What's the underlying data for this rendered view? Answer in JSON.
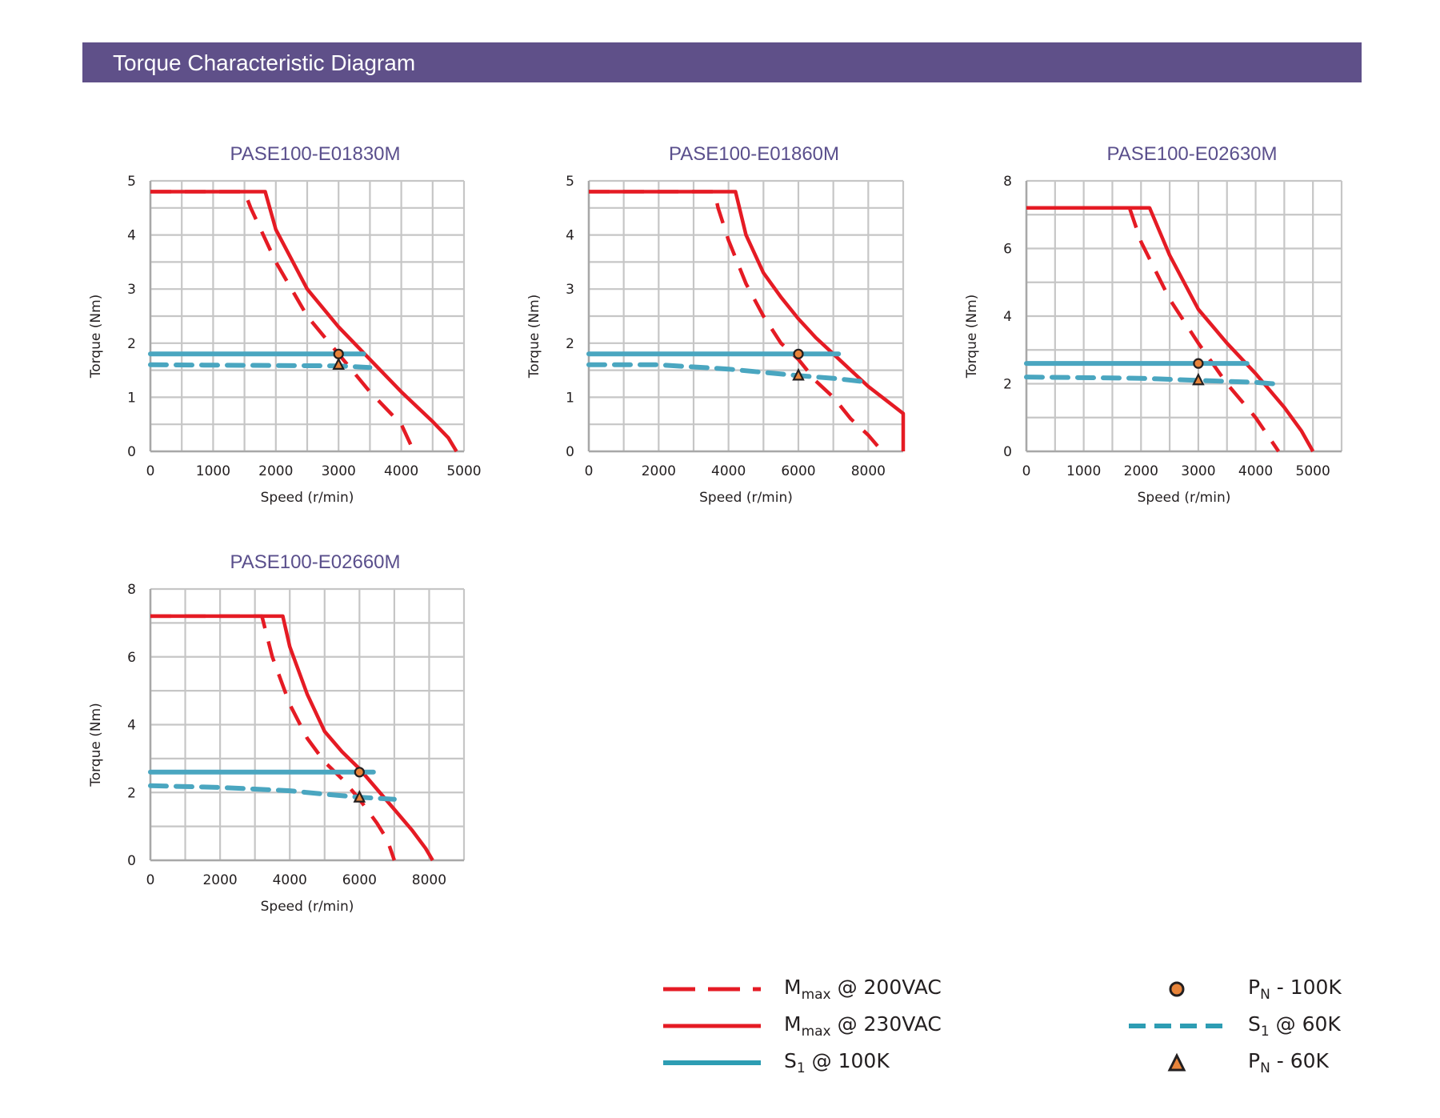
{
  "header": {
    "title": "Torque Characteristic Diagram"
  },
  "colors": {
    "header_bg": "#5f5089",
    "chart_title": "#5a4f8c",
    "mmax": "#e51b24",
    "s1": "#4aa6c0",
    "marker_fill": "#e8843a",
    "marker_stroke": "#231f20",
    "grid": "#c6c6c6"
  },
  "legend": {
    "items": [
      {
        "key": "mmax_200",
        "main": "M",
        "sub": "max",
        "rest": " @ 200VAC"
      },
      {
        "key": "mmax_230",
        "main": "M",
        "sub": "max",
        "rest": " @ 230VAC"
      },
      {
        "key": "s1_100k",
        "main": "S",
        "sub": "1",
        "rest": " @ 100K"
      },
      {
        "key": "pn_100k",
        "main": "P",
        "sub": "N",
        "rest": " - 100K"
      },
      {
        "key": "s1_60k",
        "main": "S",
        "sub": "1",
        "rest": " @ 60K"
      },
      {
        "key": "pn_60k",
        "main": "P",
        "sub": "N",
        "rest": " - 60K"
      }
    ]
  },
  "chart_data": [
    {
      "type": "line",
      "title": "PASE100-E01830M",
      "xlabel": "Speed (r/min)",
      "ylabel": "Torque (Nm)",
      "xlim": [
        0,
        5000
      ],
      "ylim": [
        0,
        5
      ],
      "x_ticks": [
        0,
        1000,
        2000,
        3000,
        4000,
        5000
      ],
      "y_ticks": [
        0,
        1,
        2,
        3,
        4,
        5
      ],
      "x_grid_step": 500,
      "y_grid_step": 0.5,
      "grid": true,
      "series": [
        {
          "name": "Mmax @ 200VAC",
          "key": "mmax_200",
          "points": [
            [
              0,
              4.8
            ],
            [
              1500,
              4.8
            ],
            [
              1600,
              4.5
            ],
            [
              2000,
              3.5
            ],
            [
              2500,
              2.5
            ],
            [
              3000,
              1.8
            ],
            [
              3500,
              1.1
            ],
            [
              4000,
              0.5
            ],
            [
              4200,
              0
            ]
          ]
        },
        {
          "name": "Mmax @ 230VAC",
          "key": "mmax_230",
          "points": [
            [
              0,
              4.8
            ],
            [
              1830,
              4.8
            ],
            [
              2000,
              4.1
            ],
            [
              2500,
              3.0
            ],
            [
              3000,
              2.3
            ],
            [
              3500,
              1.7
            ],
            [
              4000,
              1.1
            ],
            [
              4500,
              0.55
            ],
            [
              4750,
              0.25
            ],
            [
              4880,
              0
            ]
          ]
        },
        {
          "name": "S1 @ 100K",
          "key": "s1_100k",
          "points": [
            [
              0,
              1.8
            ],
            [
              3400,
              1.8
            ]
          ]
        },
        {
          "name": "S1 @ 60K",
          "key": "s1_60k",
          "points": [
            [
              0,
              1.6
            ],
            [
              3000,
              1.58
            ],
            [
              3500,
              1.55
            ]
          ]
        }
      ],
      "markers": [
        {
          "name": "PN - 100K",
          "key": "pn_100k",
          "x": 3000,
          "y": 1.8
        },
        {
          "name": "PN - 60K",
          "key": "pn_60k",
          "x": 3000,
          "y": 1.6
        }
      ]
    },
    {
      "type": "line",
      "title": "PASE100-E01860M",
      "xlabel": "Speed (r/min)",
      "ylabel": "Torque (Nm)",
      "xlim": [
        0,
        9000
      ],
      "ylim": [
        0,
        5
      ],
      "x_ticks": [
        0,
        2000,
        4000,
        6000,
        8000
      ],
      "y_ticks": [
        0,
        1,
        2,
        3,
        4,
        5
      ],
      "x_grid_step": 1000,
      "y_grid_step": 0.5,
      "grid": true,
      "series": [
        {
          "name": "Mmax @ 200VAC",
          "key": "mmax_200",
          "points": [
            [
              0,
              4.8
            ],
            [
              3600,
              4.8
            ],
            [
              3700,
              4.5
            ],
            [
              4000,
              3.9
            ],
            [
              4500,
              3.1
            ],
            [
              5000,
              2.5
            ],
            [
              5500,
              2.0
            ],
            [
              6000,
              1.7
            ],
            [
              6500,
              1.3
            ],
            [
              7000,
              1.0
            ],
            [
              7500,
              0.6
            ],
            [
              8000,
              0.3
            ],
            [
              8400,
              0
            ]
          ]
        },
        {
          "name": "Mmax @ 230VAC",
          "key": "mmax_230",
          "points": [
            [
              0,
              4.8
            ],
            [
              4200,
              4.8
            ],
            [
              4500,
              4.0
            ],
            [
              5000,
              3.3
            ],
            [
              5500,
              2.85
            ],
            [
              6000,
              2.45
            ],
            [
              6500,
              2.1
            ],
            [
              7000,
              1.8
            ],
            [
              7500,
              1.5
            ],
            [
              8000,
              1.2
            ],
            [
              8500,
              0.95
            ],
            [
              9000,
              0.7
            ],
            [
              9000,
              0
            ]
          ]
        },
        {
          "name": "S1 @ 100K",
          "key": "s1_100k",
          "points": [
            [
              0,
              1.8
            ],
            [
              7150,
              1.8
            ]
          ]
        },
        {
          "name": "S1 @ 60K",
          "key": "s1_60k",
          "points": [
            [
              0,
              1.6
            ],
            [
              2000,
              1.6
            ],
            [
              3000,
              1.56
            ],
            [
              4000,
              1.52
            ],
            [
              5000,
              1.46
            ],
            [
              6000,
              1.4
            ],
            [
              7000,
              1.35
            ],
            [
              8000,
              1.28
            ]
          ]
        }
      ],
      "markers": [
        {
          "name": "PN - 100K",
          "key": "pn_100k",
          "x": 6000,
          "y": 1.8
        },
        {
          "name": "PN - 60K",
          "key": "pn_60k",
          "x": 6000,
          "y": 1.4
        }
      ]
    },
    {
      "type": "line",
      "title": "PASE100-E02630M",
      "xlabel": "Speed (r/min)",
      "ylabel": "Torque (Nm)",
      "xlim": [
        0,
        5500
      ],
      "ylim": [
        0,
        8
      ],
      "x_ticks": [
        0,
        1000,
        2000,
        3000,
        4000,
        5000
      ],
      "y_ticks": [
        0,
        2,
        4,
        6,
        8
      ],
      "x_grid_step": 500,
      "y_grid_step": 1,
      "grid": true,
      "series": [
        {
          "name": "Mmax @ 200VAC",
          "key": "mmax_200",
          "points": [
            [
              0,
              7.2
            ],
            [
              1800,
              7.2
            ],
            [
              2000,
              6.2
            ],
            [
              2500,
              4.5
            ],
            [
              3000,
              3.2
            ],
            [
              3500,
              2.0
            ],
            [
              4000,
              1.0
            ],
            [
              4200,
              0.5
            ],
            [
              4400,
              0
            ]
          ]
        },
        {
          "name": "Mmax @ 230VAC",
          "key": "mmax_230",
          "points": [
            [
              0,
              7.2
            ],
            [
              2150,
              7.2
            ],
            [
              2500,
              5.8
            ],
            [
              3000,
              4.2
            ],
            [
              3500,
              3.2
            ],
            [
              4000,
              2.3
            ],
            [
              4500,
              1.3
            ],
            [
              4800,
              0.6
            ],
            [
              5000,
              0
            ]
          ]
        },
        {
          "name": "S1 @ 100K",
          "key": "s1_100k",
          "points": [
            [
              0,
              2.6
            ],
            [
              3850,
              2.6
            ]
          ]
        },
        {
          "name": "S1 @ 60K",
          "key": "s1_60k",
          "points": [
            [
              0,
              2.2
            ],
            [
              2000,
              2.16
            ],
            [
              3000,
              2.1
            ],
            [
              4000,
              2.04
            ],
            [
              4300,
              2.0
            ]
          ]
        }
      ],
      "markers": [
        {
          "name": "PN - 100K",
          "key": "pn_100k",
          "x": 3000,
          "y": 2.6
        },
        {
          "name": "PN - 60K",
          "key": "pn_60k",
          "x": 3000,
          "y": 2.1
        }
      ]
    },
    {
      "type": "line",
      "title": "PASE100-E02660M",
      "xlabel": "Speed (r/min)",
      "ylabel": "Torque (Nm)",
      "xlim": [
        0,
        9000
      ],
      "ylim": [
        0,
        8
      ],
      "x_ticks": [
        0,
        2000,
        4000,
        6000,
        8000
      ],
      "y_ticks": [
        0,
        2,
        4,
        6,
        8
      ],
      "x_grid_step": 1000,
      "y_grid_step": 1,
      "grid": true,
      "series": [
        {
          "name": "Mmax @ 200VAC",
          "key": "mmax_200",
          "points": [
            [
              0,
              7.2
            ],
            [
              3200,
              7.2
            ],
            [
              3300,
              6.8
            ],
            [
              3500,
              6.0
            ],
            [
              4000,
              4.6
            ],
            [
              4500,
              3.6
            ],
            [
              5000,
              2.9
            ],
            [
              5500,
              2.4
            ],
            [
              6000,
              1.8
            ],
            [
              6500,
              1.1
            ],
            [
              6800,
              0.6
            ],
            [
              7000,
              0
            ]
          ]
        },
        {
          "name": "Mmax @ 230VAC",
          "key": "mmax_230",
          "points": [
            [
              0,
              7.2
            ],
            [
              3800,
              7.2
            ],
            [
              4000,
              6.3
            ],
            [
              4500,
              4.9
            ],
            [
              5000,
              3.8
            ],
            [
              5500,
              3.2
            ],
            [
              6000,
              2.7
            ],
            [
              6500,
              2.1
            ],
            [
              7000,
              1.5
            ],
            [
              7500,
              0.9
            ],
            [
              7900,
              0.35
            ],
            [
              8100,
              0
            ]
          ]
        },
        {
          "name": "S1 @ 100K",
          "key": "s1_100k",
          "points": [
            [
              0,
              2.6
            ],
            [
              6400,
              2.6
            ]
          ]
        },
        {
          "name": "S1 @ 60K",
          "key": "s1_60k",
          "points": [
            [
              0,
              2.2
            ],
            [
              2000,
              2.15
            ],
            [
              3000,
              2.1
            ],
            [
              4000,
              2.05
            ],
            [
              5000,
              1.95
            ],
            [
              6000,
              1.86
            ],
            [
              7000,
              1.8
            ]
          ]
        }
      ],
      "markers": [
        {
          "name": "PN - 100K",
          "key": "pn_100k",
          "x": 6000,
          "y": 2.6
        },
        {
          "name": "PN - 60K",
          "key": "pn_60k",
          "x": 6000,
          "y": 1.85
        }
      ]
    }
  ]
}
